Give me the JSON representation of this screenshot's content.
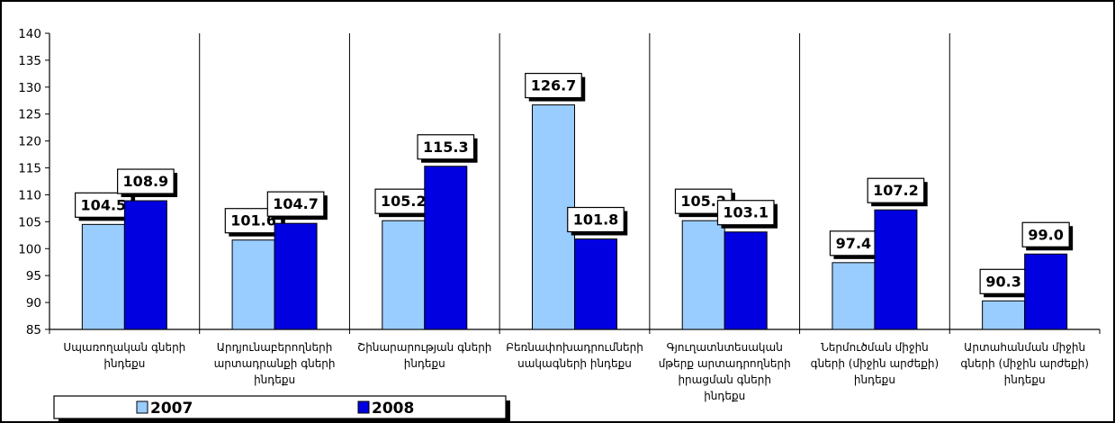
{
  "chart_data": {
    "type": "bar",
    "categories": [
      [
        "Սպառողական գների",
        "ինդեքս"
      ],
      [
        "Արդյունաբերողների",
        "արտադրանքի գների",
        "ինդեքս"
      ],
      [
        "Շինարարության գների",
        "ինդեքս"
      ],
      [
        "Բեռնափոխադրումների",
        "սակագների ինդեքս"
      ],
      [
        "Գյուղատնտեսական",
        "մթերք արտադրողների",
        "իրացման  գների",
        "ինդեքս"
      ],
      [
        "Ներմուծման միջին",
        "գների (միջին արժեքի)",
        "ինդեքս"
      ],
      [
        "Արտահանման միջին",
        "գների (միջին արժեքի)",
        "ինդեքս"
      ]
    ],
    "series": [
      {
        "name": "2007",
        "color": "#99ccff",
        "values": [
          104.5,
          101.6,
          105.2,
          126.7,
          105.2,
          97.4,
          90.3
        ],
        "labels": [
          "104.5",
          "101.6",
          "105.2",
          "126.7",
          "105.2",
          "97.4",
          "90.3"
        ]
      },
      {
        "name": "2008",
        "color": "#0000e0",
        "values": [
          108.9,
          104.7,
          115.3,
          101.8,
          103.1,
          107.2,
          99.0
        ],
        "labels": [
          "108.9",
          "104.7",
          "115.3",
          "101.8",
          "103.1",
          "107.2",
          "99.0"
        ]
      }
    ],
    "ylim": [
      85,
      140
    ],
    "yticks": [
      "85",
      "90",
      "95",
      "100",
      "105",
      "110",
      "115",
      "120",
      "125",
      "130",
      "135",
      "140"
    ],
    "grid": false,
    "legend_position": "bottom-left"
  }
}
